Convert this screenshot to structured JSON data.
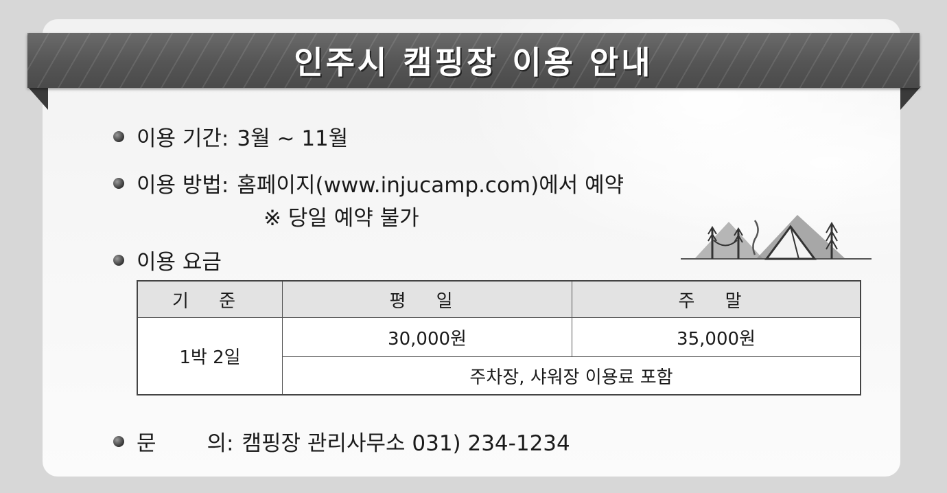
{
  "title": "인주시 캠핑장 이용 안내",
  "items": {
    "period": {
      "label": "이용 기간:",
      "value": "3월 ~ 11월"
    },
    "method": {
      "label": "이용 방법:",
      "value": "홈페이지(www.injucamp.com)에서 예약",
      "note": "※ 당일 예약 불가"
    },
    "fee": {
      "label": "이용 요금"
    },
    "contact": {
      "label_a": "문",
      "label_b": "의:",
      "value": "캠핑장 관리사무소 031) 234-1234"
    }
  },
  "fee_table": {
    "headers": [
      "기 준",
      "평 일",
      "주 말"
    ],
    "row_label": "1박 2일",
    "weekday_price": "30,000원",
    "weekend_price": "35,000원",
    "footnote": "주차장, 샤워장 이용료 포함"
  }
}
